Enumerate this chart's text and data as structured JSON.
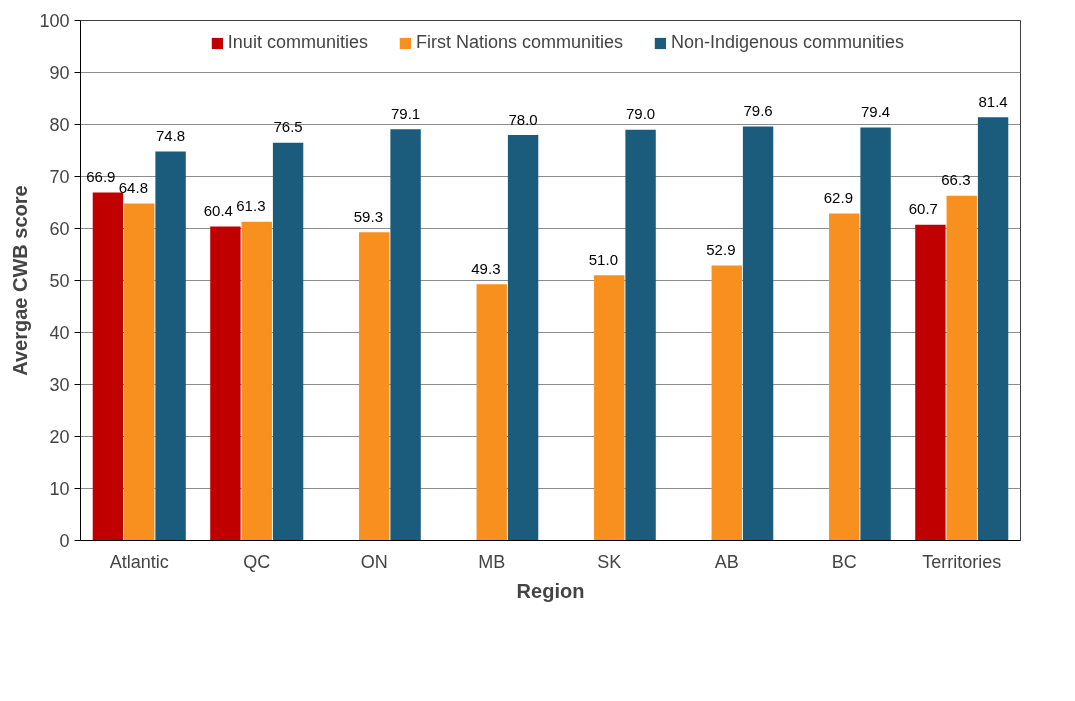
{
  "chart_data": {
    "type": "bar",
    "xlabel": "Region",
    "ylabel": "Avergae CWB score",
    "categories": [
      "Atlantic",
      "QC",
      "ON",
      "MB",
      "SK",
      "AB",
      "BC",
      "Territories"
    ],
    "series": [
      {
        "name": "Inuit communities",
        "color": "#c00000",
        "values": [
          66.9,
          60.4,
          null,
          null,
          null,
          null,
          null,
          60.7
        ],
        "value_labels": [
          "66.9",
          "60.4",
          null,
          null,
          null,
          null,
          null,
          "60.7"
        ]
      },
      {
        "name": "First Nations communities",
        "color": "#f7901e",
        "values": [
          64.8,
          61.3,
          59.3,
          49.3,
          51.0,
          52.9,
          62.9,
          66.3
        ],
        "value_labels": [
          "64.8",
          "61.3",
          "59.3",
          "49.3",
          "51.0",
          "52.9",
          "62.9",
          "66.3"
        ]
      },
      {
        "name": "Non-Indigenous communities",
        "color": "#1b5b7c",
        "values": [
          74.8,
          76.5,
          79.1,
          78.0,
          79.0,
          79.6,
          79.4,
          81.4
        ],
        "value_labels": [
          "74.8",
          "76.5",
          "79.1",
          "78.0",
          "79.0",
          "79.6",
          "79.4",
          "81.4"
        ]
      }
    ],
    "ylim": [
      0,
      100
    ],
    "yticks": [
      0,
      10,
      20,
      30,
      40,
      50,
      60,
      70,
      80,
      90,
      100
    ],
    "grid": "y",
    "legend": "top",
    "data_labels": true
  }
}
